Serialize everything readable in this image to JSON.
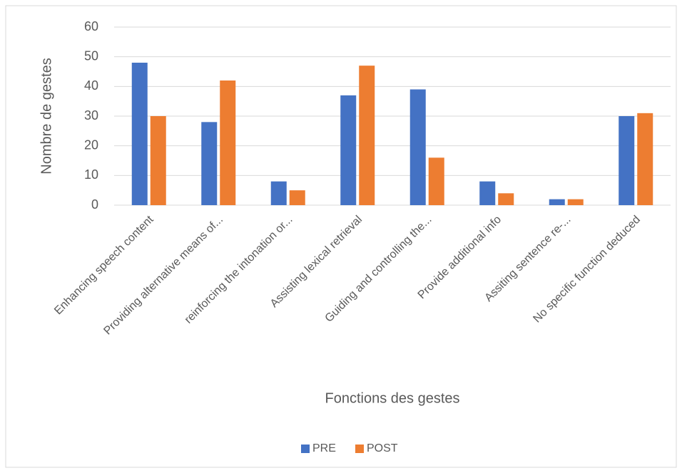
{
  "chart_data": {
    "type": "bar",
    "x_label": "Fonctions des gestes",
    "y_label": "Nombre de gestes",
    "categories": [
      "Enhancing speech content",
      "Providing alternative means of...",
      "reinforcing the intonation or...",
      "Assisting lexical retrieval",
      "Guiding and controlling the...",
      "Provide additional info",
      "Assiting sentence re-...",
      "No specific function deduced"
    ],
    "series": [
      {
        "name": "PRE",
        "color": "#4472c4",
        "values": [
          48,
          28,
          8,
          37,
          39,
          8,
          2,
          30
        ]
      },
      {
        "name": "POST",
        "color": "#ed7d31",
        "values": [
          30,
          42,
          5,
          47,
          16,
          4,
          2,
          31
        ]
      }
    ],
    "ylim": [
      0,
      60
    ],
    "yticks": [
      0,
      10,
      20,
      30,
      40,
      50,
      60
    ],
    "grid": true,
    "legend": "bottom"
  }
}
